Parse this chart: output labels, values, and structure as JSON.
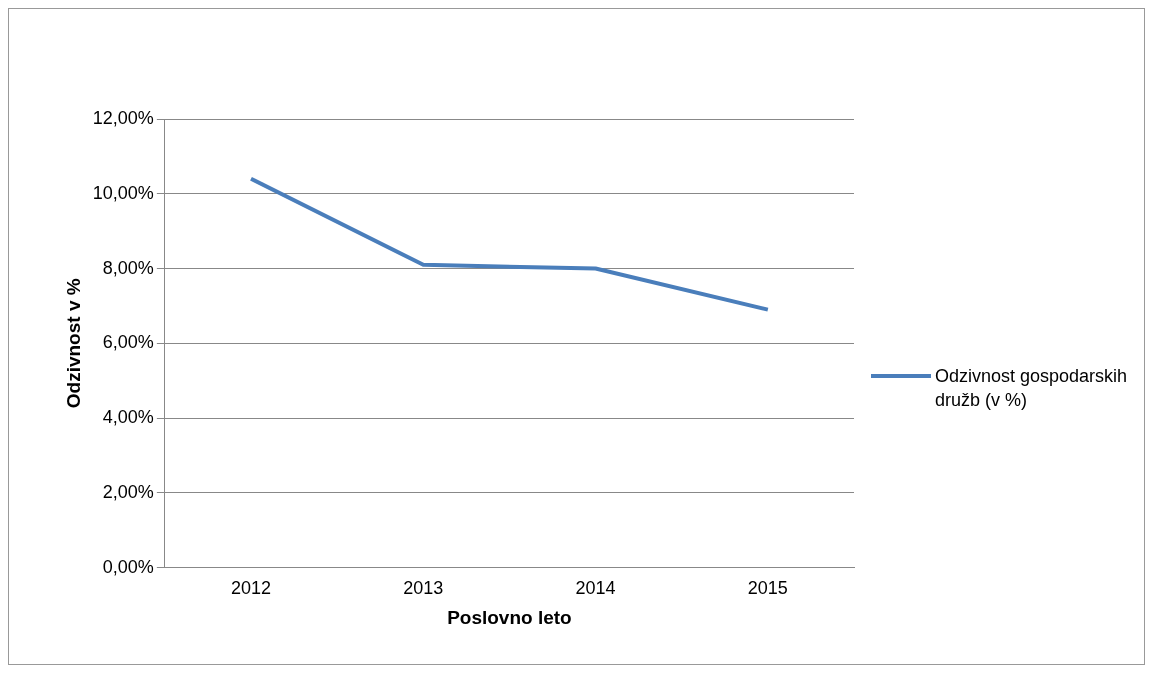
{
  "chart_data": {
    "type": "line",
    "xlabel": "Poslovno leto",
    "ylabel": "Odzivnost v %",
    "categories": [
      "2012",
      "2013",
      "2014",
      "2015"
    ],
    "series": [
      {
        "name": "Odzivnost gospodarskih družb (v %)",
        "color": "#4a7ebb",
        "values": [
          10.4,
          8.1,
          8.0,
          6.9
        ]
      }
    ],
    "ylim": [
      0,
      12
    ],
    "yticks": [
      {
        "value": 0,
        "label": "0,00%"
      },
      {
        "value": 2,
        "label": "2,00%"
      },
      {
        "value": 4,
        "label": "4,00%"
      },
      {
        "value": 6,
        "label": "6,00%"
      },
      {
        "value": 8,
        "label": "8,00%"
      },
      {
        "value": 10,
        "label": "10,00%"
      },
      {
        "value": 12,
        "label": "12,00%"
      }
    ],
    "grid": "y",
    "legend": "right",
    "marker": "none",
    "line_style": "solid"
  }
}
